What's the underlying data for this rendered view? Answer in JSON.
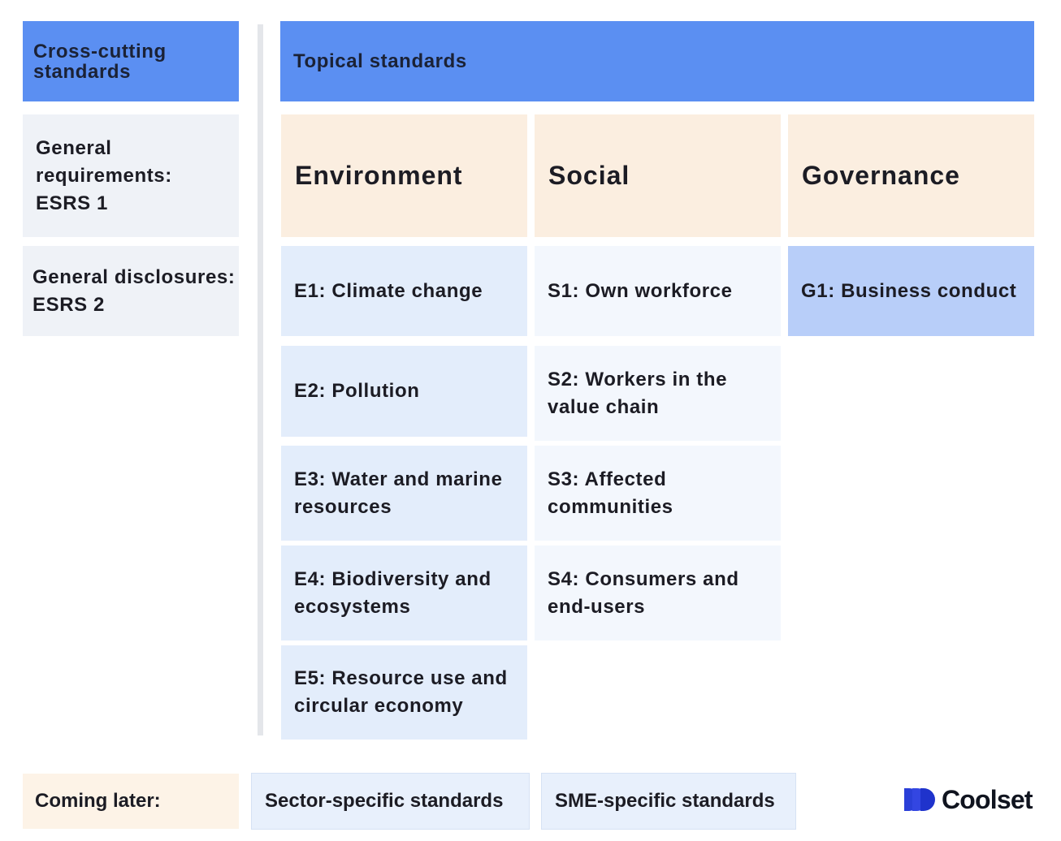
{
  "cross_cutting": {
    "title": "Cross-cutting standards",
    "items": [
      "General requirements: ESRS 1",
      "General disclosures: ESRS 2"
    ]
  },
  "topical": {
    "title": "Topical standards",
    "pillars": [
      {
        "name": "Environment",
        "items": [
          "E1: Climate change",
          "E2: Pollution",
          "E3: Water and marine resources",
          "E4: Biodiversity and ecosystems",
          "E5: Resource use and circular economy"
        ]
      },
      {
        "name": "Social",
        "items": [
          "S1: Own workforce",
          "S2: Workers in the value chain",
          "S3: Affected communities",
          "S4: Consumers and end-users"
        ]
      },
      {
        "name": "Governance",
        "items": [
          "G1: Business conduct"
        ]
      }
    ]
  },
  "footer": {
    "coming_later": "Coming later:",
    "sector_specific": "Sector-specific standards",
    "sme_specific": "SME-specific standards"
  },
  "brand": {
    "name": "Coolset",
    "color": "#2f45e0"
  },
  "colors": {
    "header": "#5b8ff2",
    "pillar": "#fbeee0",
    "environment": "#e3edfb",
    "social": "#f3f7fd",
    "governance": "#b8cef9",
    "general": "#eff2f7"
  }
}
